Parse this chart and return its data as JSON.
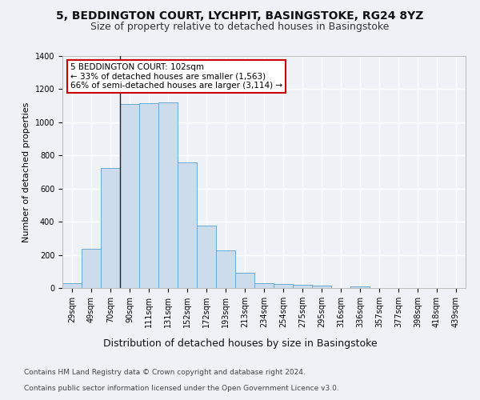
{
  "title1": "5, BEDDINGTON COURT, LYCHPIT, BASINGSTOKE, RG24 8YZ",
  "title2": "Size of property relative to detached houses in Basingstoke",
  "xlabel": "Distribution of detached houses by size in Basingstoke",
  "ylabel": "Number of detached properties",
  "footnote1": "Contains HM Land Registry data © Crown copyright and database right 2024.",
  "footnote2": "Contains public sector information licensed under the Open Government Licence v3.0.",
  "categories": [
    "29sqm",
    "49sqm",
    "70sqm",
    "90sqm",
    "111sqm",
    "131sqm",
    "152sqm",
    "172sqm",
    "193sqm",
    "213sqm",
    "234sqm",
    "254sqm",
    "275sqm",
    "295sqm",
    "316sqm",
    "336sqm",
    "357sqm",
    "377sqm",
    "398sqm",
    "418sqm",
    "439sqm"
  ],
  "values": [
    30,
    235,
    725,
    1110,
    1115,
    1120,
    760,
    375,
    225,
    90,
    30,
    25,
    20,
    15,
    0,
    10,
    0,
    0,
    0,
    0,
    0
  ],
  "bar_color": "#ccdcec",
  "bar_edge_color": "#6aaad4",
  "annotation_text": "5 BEDDINGTON COURT: 102sqm\n← 33% of detached houses are smaller (1,563)\n66% of semi-detached houses are larger (3,114) →",
  "annotation_box_color": "#ffffff",
  "annotation_box_edge": "#cc0000",
  "vline_x": 2.5,
  "ylim": [
    0,
    1400
  ],
  "yticks": [
    0,
    200,
    400,
    600,
    800,
    1000,
    1200,
    1400
  ],
  "background_color": "#eef2f7",
  "grid_color": "#ffffff",
  "title1_fontsize": 10,
  "title2_fontsize": 9,
  "xlabel_fontsize": 9,
  "ylabel_fontsize": 8,
  "tick_fontsize": 7,
  "footnote_fontsize": 6.5,
  "annot_fontsize": 7.5
}
